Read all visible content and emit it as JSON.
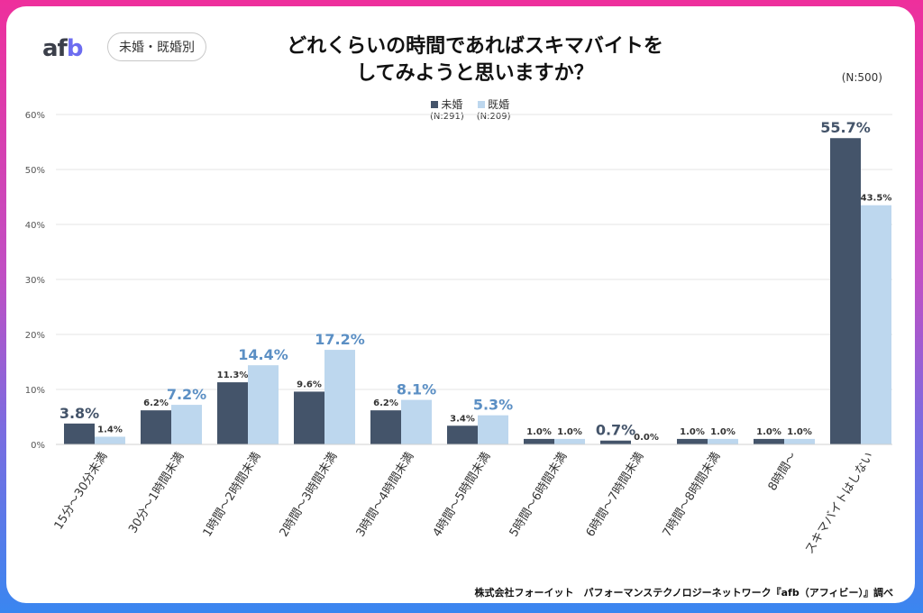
{
  "header": {
    "logo": "afb",
    "tag": "未婚・既婚別",
    "title_line1": "どれくらいの時間であればスキマバイトを",
    "title_line2": "してみようと思いますか？",
    "total_n": "(N:500)"
  },
  "footer": "株式会社フォーイット　パフォーマンステクノロジーネットワーク『afb（アフィビー）』調べ",
  "chart_data": {
    "type": "bar",
    "categories": [
      "15分〜30分未満",
      "30分〜1時間未満",
      "1時間〜2時間未満",
      "2時間〜3時間未満",
      "3時間〜4時間未満",
      "4時間〜5時間未満",
      "5時間〜6時間未満",
      "6時間〜7時間未満",
      "7時間〜8時間未満",
      "8時間〜",
      "スキマバイトはしない"
    ],
    "series": [
      {
        "name": "未婚",
        "n": "(N:291)",
        "color": "#44546a",
        "values": [
          3.8,
          6.2,
          11.3,
          9.6,
          6.2,
          3.4,
          1.0,
          0.7,
          1.0,
          1.0,
          55.7
        ]
      },
      {
        "name": "既婚",
        "n": "(N:209)",
        "color": "#bdd7ee",
        "highlight_color": "#5b8fc4",
        "values": [
          1.4,
          7.2,
          14.4,
          17.2,
          8.1,
          5.3,
          1.0,
          0.0,
          1.0,
          1.0,
          43.5
        ]
      }
    ],
    "yticks": [
      "0%",
      "10%",
      "20%",
      "30%",
      "40%",
      "50%",
      "60%"
    ],
    "ylim": [
      0,
      60
    ],
    "grid": true,
    "legend": "top-center"
  }
}
